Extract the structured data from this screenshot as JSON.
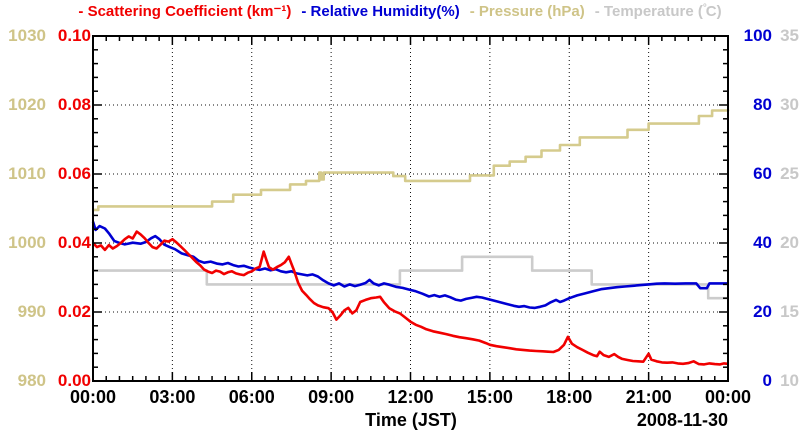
{
  "chart_data": {
    "type": "line",
    "title_segments": [
      {
        "text": "- Scattering Coefficient (km⁻¹)",
        "color": "#f10000"
      },
      {
        "text": "- Relative Humidity(%)",
        "color": "#0000d2"
      },
      {
        "text": "- Pressure (hPa)",
        "color": "#cfc488"
      },
      {
        "text": "- Temperature (°C)",
        "color": "#c8c8c8"
      }
    ],
    "x_axis": {
      "label": "Time (JST)",
      "date_label": "2008-11-30",
      "range": [
        0,
        24
      ],
      "major_tick_hours": 3,
      "minor_tick_hours": 0.5,
      "tick_labels": [
        "00:00",
        "03:00",
        "06:00",
        "09:00",
        "12:00",
        "15:00",
        "18:00",
        "21:00",
        "00:00"
      ]
    },
    "grid": {
      "on": true,
      "style": "dotted",
      "color": "#111111"
    },
    "legend_position": "top-title",
    "y_axes": [
      {
        "id": "pressure",
        "name": "Pressure (hPa)",
        "color": "#cfc488",
        "min": 980,
        "max": 1030,
        "tick_labels": [
          "1030",
          "1020",
          "1010",
          "1000",
          "990",
          "980"
        ]
      },
      {
        "id": "scattering",
        "name": "Scattering Coefficient (km⁻¹)",
        "color": "#f10000",
        "min": 0,
        "max": 0.1,
        "tick_labels": [
          "0.10",
          "0.08",
          "0.06",
          "0.04",
          "0.02",
          "0.00"
        ]
      },
      {
        "id": "humidity",
        "name": "Relative Humidity(%)",
        "color": "#0000d2",
        "min": 0,
        "max": 100,
        "tick_labels": [
          "100",
          "80",
          "60",
          "40",
          "20",
          "0"
        ]
      },
      {
        "id": "temperature",
        "name": "Temperature (°C)",
        "color": "#c8c8c8",
        "min": 10,
        "max": 35,
        "tick_labels": [
          "35",
          "30",
          "25",
          "20",
          "15",
          "10"
        ]
      }
    ],
    "series": [
      {
        "name": "Temperature (°C)",
        "axis": "temperature",
        "color": "#cccccc",
        "style": "step",
        "points": [
          [
            0,
            18.0
          ],
          [
            4.3,
            17.0
          ],
          [
            11.6,
            18.0
          ],
          [
            13.95,
            19.0
          ],
          [
            16.6,
            18.0
          ],
          [
            18.85,
            17.0
          ],
          [
            23.25,
            16.0
          ],
          [
            24,
            16.0
          ]
        ]
      },
      {
        "name": "Pressure (hPa)",
        "axis": "pressure",
        "color": "#d5cb8d",
        "style": "step",
        "points": [
          [
            0,
            1004.8
          ],
          [
            0.2,
            1005.3
          ],
          [
            4.5,
            1006.0
          ],
          [
            5.3,
            1007.0
          ],
          [
            6.35,
            1007.7
          ],
          [
            7.45,
            1008.5
          ],
          [
            8.05,
            1009.0
          ],
          [
            8.55,
            1010.2
          ],
          [
            8.62,
            1009.2
          ],
          [
            8.72,
            1010.2
          ],
          [
            11.35,
            1009.7
          ],
          [
            11.8,
            1009.0
          ],
          [
            14.25,
            1009.8
          ],
          [
            15.15,
            1011.2
          ],
          [
            15.75,
            1011.8
          ],
          [
            16.35,
            1012.5
          ],
          [
            16.95,
            1013.4
          ],
          [
            17.65,
            1014.2
          ],
          [
            18.4,
            1015.3
          ],
          [
            20.2,
            1016.4
          ],
          [
            21.0,
            1017.3
          ],
          [
            22.9,
            1018.4
          ],
          [
            23.4,
            1019.2
          ],
          [
            24,
            1019.3
          ]
        ]
      },
      {
        "name": "Relative Humidity(%)",
        "axis": "humidity",
        "color": "#0000d2",
        "style": "line",
        "points": [
          [
            0,
            46.2
          ],
          [
            0.1,
            43.8
          ],
          [
            0.25,
            44.9
          ],
          [
            0.45,
            44.2
          ],
          [
            0.6,
            42.8
          ],
          [
            0.8,
            40.6
          ],
          [
            1.0,
            40.0
          ],
          [
            1.2,
            39.6
          ],
          [
            1.5,
            40.1
          ],
          [
            1.8,
            39.8
          ],
          [
            2.0,
            40.3
          ],
          [
            2.2,
            41.4
          ],
          [
            2.35,
            42.0
          ],
          [
            2.5,
            41.2
          ],
          [
            2.7,
            39.5
          ],
          [
            2.9,
            38.8
          ],
          [
            3.1,
            38.2
          ],
          [
            3.35,
            37.0
          ],
          [
            3.6,
            36.4
          ],
          [
            3.8,
            36.0
          ],
          [
            4.0,
            34.8
          ],
          [
            4.2,
            34.3
          ],
          [
            4.45,
            34.6
          ],
          [
            4.7,
            34.0
          ],
          [
            4.9,
            33.8
          ],
          [
            5.1,
            34.2
          ],
          [
            5.3,
            33.6
          ],
          [
            5.5,
            33.2
          ],
          [
            5.7,
            33.4
          ],
          [
            5.9,
            32.9
          ],
          [
            6.1,
            32.5
          ],
          [
            6.3,
            32.2
          ],
          [
            6.5,
            32.6
          ],
          [
            6.7,
            32.1
          ],
          [
            6.9,
            32.4
          ],
          [
            7.1,
            31.8
          ],
          [
            7.3,
            31.5
          ],
          [
            7.5,
            31.8
          ],
          [
            7.7,
            31.2
          ],
          [
            7.9,
            30.9
          ],
          [
            8.1,
            30.6
          ],
          [
            8.3,
            30.9
          ],
          [
            8.5,
            30.3
          ],
          [
            8.7,
            29.2
          ],
          [
            8.9,
            28.3
          ],
          [
            9.1,
            27.7
          ],
          [
            9.3,
            28.3
          ],
          [
            9.5,
            27.4
          ],
          [
            9.7,
            28.0
          ],
          [
            9.9,
            27.5
          ],
          [
            10.1,
            27.9
          ],
          [
            10.3,
            28.4
          ],
          [
            10.45,
            29.3
          ],
          [
            10.6,
            28.3
          ],
          [
            10.8,
            27.7
          ],
          [
            11.0,
            28.3
          ],
          [
            11.2,
            27.9
          ],
          [
            11.45,
            27.3
          ],
          [
            11.7,
            27.0
          ],
          [
            11.95,
            26.5
          ],
          [
            12.2,
            26.0
          ],
          [
            12.45,
            25.3
          ],
          [
            12.7,
            24.5
          ],
          [
            12.9,
            24.9
          ],
          [
            13.1,
            24.4
          ],
          [
            13.3,
            24.8
          ],
          [
            13.5,
            24.3
          ],
          [
            13.7,
            23.6
          ],
          [
            13.9,
            23.3
          ],
          [
            14.1,
            23.8
          ],
          [
            14.3,
            24.1
          ],
          [
            14.5,
            24.4
          ],
          [
            14.7,
            24.2
          ],
          [
            14.9,
            23.8
          ],
          [
            15.1,
            23.4
          ],
          [
            15.3,
            23.0
          ],
          [
            15.6,
            22.4
          ],
          [
            15.9,
            21.8
          ],
          [
            16.1,
            21.5
          ],
          [
            16.3,
            21.7
          ],
          [
            16.5,
            21.3
          ],
          [
            16.7,
            21.2
          ],
          [
            16.9,
            21.5
          ],
          [
            17.1,
            21.9
          ],
          [
            17.3,
            22.8
          ],
          [
            17.5,
            23.5
          ],
          [
            17.65,
            22.9
          ],
          [
            17.8,
            23.3
          ],
          [
            18.0,
            24.0
          ],
          [
            18.3,
            24.8
          ],
          [
            18.6,
            25.4
          ],
          [
            18.9,
            26.0
          ],
          [
            19.2,
            26.6
          ],
          [
            19.5,
            26.9
          ],
          [
            19.8,
            27.2
          ],
          [
            20.1,
            27.4
          ],
          [
            20.4,
            27.6
          ],
          [
            20.7,
            27.8
          ],
          [
            21.0,
            28.0
          ],
          [
            21.3,
            28.2
          ],
          [
            21.6,
            28.3
          ],
          [
            22.0,
            28.2
          ],
          [
            22.4,
            28.3
          ],
          [
            22.8,
            28.3
          ],
          [
            22.95,
            26.9
          ],
          [
            23.2,
            26.9
          ],
          [
            23.3,
            28.3
          ],
          [
            23.6,
            28.3
          ],
          [
            24,
            28.3
          ]
        ]
      },
      {
        "name": "Scattering Coefficient (km⁻¹)",
        "axis": "scattering",
        "color": "#f10000",
        "style": "line",
        "points": [
          [
            0,
            0.04
          ],
          [
            0.15,
            0.0388
          ],
          [
            0.3,
            0.0393
          ],
          [
            0.45,
            0.038
          ],
          [
            0.6,
            0.0394
          ],
          [
            0.75,
            0.0384
          ],
          [
            0.9,
            0.0391
          ],
          [
            1.05,
            0.04
          ],
          [
            1.2,
            0.0411
          ],
          [
            1.35,
            0.0419
          ],
          [
            1.5,
            0.0413
          ],
          [
            1.65,
            0.0433
          ],
          [
            1.8,
            0.0425
          ],
          [
            1.95,
            0.0414
          ],
          [
            2.1,
            0.04
          ],
          [
            2.25,
            0.0388
          ],
          [
            2.4,
            0.0384
          ],
          [
            2.55,
            0.0395
          ],
          [
            2.7,
            0.0407
          ],
          [
            2.85,
            0.0404
          ],
          [
            3.0,
            0.0411
          ],
          [
            3.15,
            0.0402
          ],
          [
            3.3,
            0.0391
          ],
          [
            3.45,
            0.038
          ],
          [
            3.6,
            0.0368
          ],
          [
            3.75,
            0.0357
          ],
          [
            3.9,
            0.0345
          ],
          [
            4.05,
            0.0335
          ],
          [
            4.2,
            0.0323
          ],
          [
            4.35,
            0.0317
          ],
          [
            4.5,
            0.0313
          ],
          [
            4.65,
            0.032
          ],
          [
            4.8,
            0.0317
          ],
          [
            4.95,
            0.031
          ],
          [
            5.1,
            0.0315
          ],
          [
            5.25,
            0.0318
          ],
          [
            5.4,
            0.0312
          ],
          [
            5.55,
            0.0309
          ],
          [
            5.7,
            0.0307
          ],
          [
            5.85,
            0.0314
          ],
          [
            6.0,
            0.0318
          ],
          [
            6.15,
            0.0326
          ],
          [
            6.3,
            0.0331
          ],
          [
            6.45,
            0.0375
          ],
          [
            6.55,
            0.0352
          ],
          [
            6.65,
            0.033
          ],
          [
            6.8,
            0.0323
          ],
          [
            6.95,
            0.033
          ],
          [
            7.1,
            0.0336
          ],
          [
            7.25,
            0.0344
          ],
          [
            7.4,
            0.036
          ],
          [
            7.5,
            0.034
          ],
          [
            7.6,
            0.032
          ],
          [
            7.75,
            0.0285
          ],
          [
            7.9,
            0.0262
          ],
          [
            8.05,
            0.025
          ],
          [
            8.2,
            0.0237
          ],
          [
            8.35,
            0.0226
          ],
          [
            8.5,
            0.0219
          ],
          [
            8.7,
            0.0214
          ],
          [
            8.9,
            0.0211
          ],
          [
            9.05,
            0.02
          ],
          [
            9.2,
            0.0178
          ],
          [
            9.35,
            0.019
          ],
          [
            9.5,
            0.0205
          ],
          [
            9.65,
            0.0212
          ],
          [
            9.8,
            0.0196
          ],
          [
            9.95,
            0.0205
          ],
          [
            10.1,
            0.0229
          ],
          [
            10.3,
            0.0235
          ],
          [
            10.5,
            0.024
          ],
          [
            10.7,
            0.0242
          ],
          [
            10.85,
            0.0244
          ],
          [
            11.0,
            0.0228
          ],
          [
            11.2,
            0.0211
          ],
          [
            11.4,
            0.0202
          ],
          [
            11.6,
            0.0196
          ],
          [
            11.8,
            0.0184
          ],
          [
            12.0,
            0.0172
          ],
          [
            12.2,
            0.0163
          ],
          [
            12.4,
            0.0157
          ],
          [
            12.6,
            0.015
          ],
          [
            12.85,
            0.0144
          ],
          [
            13.1,
            0.014
          ],
          [
            13.35,
            0.0136
          ],
          [
            13.6,
            0.0131
          ],
          [
            13.85,
            0.0127
          ],
          [
            14.1,
            0.0124
          ],
          [
            14.35,
            0.0121
          ],
          [
            14.6,
            0.0117
          ],
          [
            14.85,
            0.011
          ],
          [
            15.0,
            0.0105
          ],
          [
            15.25,
            0.0101
          ],
          [
            15.5,
            0.0098
          ],
          [
            15.75,
            0.0095
          ],
          [
            16.0,
            0.0092
          ],
          [
            16.25,
            0.009
          ],
          [
            16.5,
            0.0088
          ],
          [
            16.75,
            0.0087
          ],
          [
            17.0,
            0.0086
          ],
          [
            17.2,
            0.0085
          ],
          [
            17.4,
            0.0084
          ],
          [
            17.6,
            0.009
          ],
          [
            17.8,
            0.0105
          ],
          [
            17.95,
            0.0128
          ],
          [
            18.1,
            0.0108
          ],
          [
            18.3,
            0.0098
          ],
          [
            18.5,
            0.009
          ],
          [
            18.7,
            0.0082
          ],
          [
            18.9,
            0.0075
          ],
          [
            19.05,
            0.0072
          ],
          [
            19.15,
            0.0085
          ],
          [
            19.3,
            0.0075
          ],
          [
            19.5,
            0.007
          ],
          [
            19.7,
            0.0078
          ],
          [
            19.85,
            0.007
          ],
          [
            20.0,
            0.0064
          ],
          [
            20.2,
            0.0061
          ],
          [
            20.4,
            0.0058
          ],
          [
            20.6,
            0.0057
          ],
          [
            20.8,
            0.0056
          ],
          [
            21.0,
            0.0079
          ],
          [
            21.1,
            0.0062
          ],
          [
            21.3,
            0.0057
          ],
          [
            21.5,
            0.0054
          ],
          [
            21.7,
            0.0053
          ],
          [
            21.9,
            0.0054
          ],
          [
            22.1,
            0.0051
          ],
          [
            22.3,
            0.005
          ],
          [
            22.5,
            0.0052
          ],
          [
            22.7,
            0.0057
          ],
          [
            22.9,
            0.0049
          ],
          [
            23.1,
            0.0048
          ],
          [
            23.3,
            0.0051
          ],
          [
            23.5,
            0.0049
          ],
          [
            23.7,
            0.0048
          ],
          [
            23.85,
            0.0051
          ],
          [
            24,
            0.005
          ]
        ]
      }
    ]
  }
}
